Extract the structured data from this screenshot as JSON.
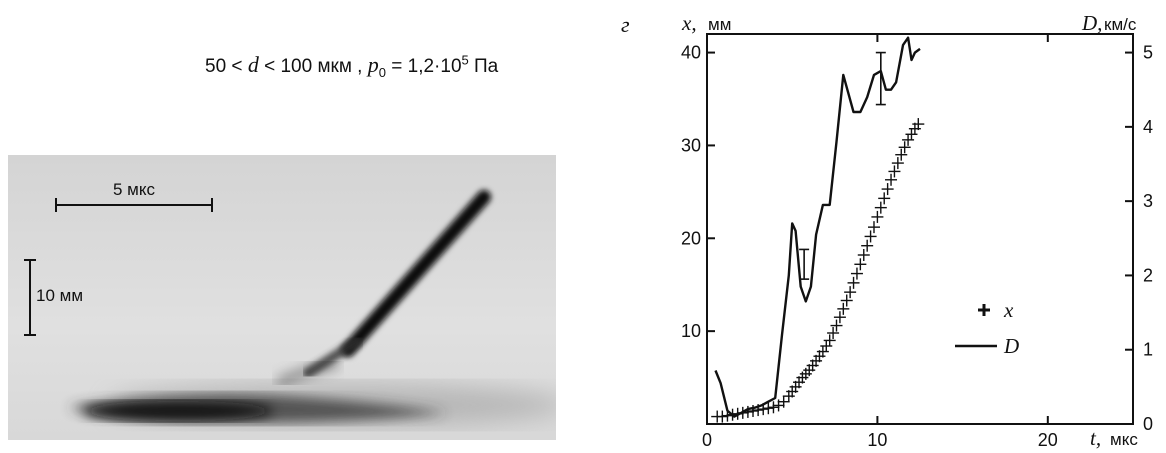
{
  "photo": {
    "caption_lhs": "50",
    "caption_lt1": "<",
    "caption_d": "d",
    "caption_lt2": "<",
    "caption_d_range": "100 мкм ,",
    "caption_p": "p",
    "caption_p_sub": "0",
    "caption_p_eq": "= 1,2·10",
    "caption_p_sup": "5",
    "caption_p_unit": " Па",
    "time_scale_label": "5 мкс",
    "length_scale_label": "10 мм"
  },
  "chart_data": {
    "type": "line",
    "panel_label": "г",
    "x_axis": {
      "symbol": "t,",
      "unit": "мкс",
      "range": [
        0,
        25
      ],
      "ticks": [
        0,
        10,
        20
      ]
    },
    "y_left": {
      "symbol": "x,",
      "unit": "мм",
      "range": [
        0,
        42
      ],
      "ticks": [
        10,
        20,
        30,
        40
      ]
    },
    "y_right": {
      "symbol": "D,",
      "unit": "км/с",
      "range": [
        0,
        5.25
      ],
      "ticks": [
        0,
        1,
        2,
        3,
        4,
        5
      ]
    },
    "legend": {
      "position": "right",
      "entries": [
        {
          "marker": "+",
          "label": "x"
        },
        {
          "marker": "line",
          "label": "D"
        }
      ]
    },
    "series": [
      {
        "name": "x",
        "axis": "left",
        "style": "markers",
        "x": [
          0.6,
          0.9,
          1.2,
          1.5,
          1.8,
          2.1,
          2.4,
          2.7,
          3.0,
          3.3,
          3.6,
          3.9,
          4.2,
          4.5,
          4.8,
          5.0,
          5.2,
          5.4,
          5.6,
          5.8,
          6.0,
          6.2,
          6.4,
          6.6,
          6.8,
          7.0,
          7.2,
          7.4,
          7.6,
          7.8,
          8.0,
          8.2,
          8.4,
          8.6,
          8.8,
          9.0,
          9.2,
          9.4,
          9.6,
          9.8,
          10.0,
          10.2,
          10.4,
          10.6,
          10.8,
          11.0,
          11.2,
          11.4,
          11.6,
          11.8,
          12.0,
          12.2,
          12.4
        ],
        "y": [
          0.8,
          0.8,
          0.9,
          1.0,
          1.1,
          1.2,
          1.3,
          1.4,
          1.5,
          1.6,
          1.7,
          1.8,
          2.0,
          2.4,
          3.0,
          3.5,
          4.0,
          4.5,
          5.0,
          5.4,
          5.8,
          6.3,
          6.8,
          7.3,
          7.8,
          8.4,
          9.0,
          9.8,
          10.6,
          11.5,
          12.4,
          13.3,
          14.2,
          15.2,
          16.2,
          17.2,
          18.2,
          19.2,
          20.2,
          21.2,
          22.3,
          23.3,
          24.3,
          25.3,
          26.3,
          27.2,
          28.1,
          29.0,
          29.8,
          30.6,
          31.2,
          31.8,
          32.3
        ]
      },
      {
        "name": "D",
        "axis": "right",
        "style": "line",
        "x": [
          0.5,
          0.8,
          1.2,
          1.6,
          2.0,
          2.4,
          2.8,
          3.2,
          3.6,
          4.0,
          4.4,
          4.8,
          5.0,
          5.2,
          5.5,
          5.8,
          6.1,
          6.4,
          6.8,
          7.2,
          7.6,
          8.0,
          8.3,
          8.6,
          9.0,
          9.4,
          9.8,
          10.2,
          10.5,
          10.8,
          11.1,
          11.5,
          11.8,
          12.0,
          12.2,
          12.5
        ],
        "y": [
          0.72,
          0.55,
          0.18,
          0.1,
          0.15,
          0.2,
          0.22,
          0.25,
          0.3,
          0.35,
          1.2,
          2.0,
          2.7,
          2.6,
          1.85,
          1.65,
          1.85,
          2.55,
          2.95,
          2.95,
          3.8,
          4.7,
          4.45,
          4.2,
          4.2,
          4.4,
          4.7,
          4.75,
          4.5,
          4.5,
          4.6,
          5.1,
          5.2,
          4.9,
          5.0,
          5.05
        ]
      }
    ],
    "error_bars": [
      {
        "x": 5.7,
        "y_low": 1.95,
        "y_high": 2.35
      },
      {
        "x": 10.2,
        "y_low": 4.3,
        "y_high": 5.0
      }
    ]
  }
}
